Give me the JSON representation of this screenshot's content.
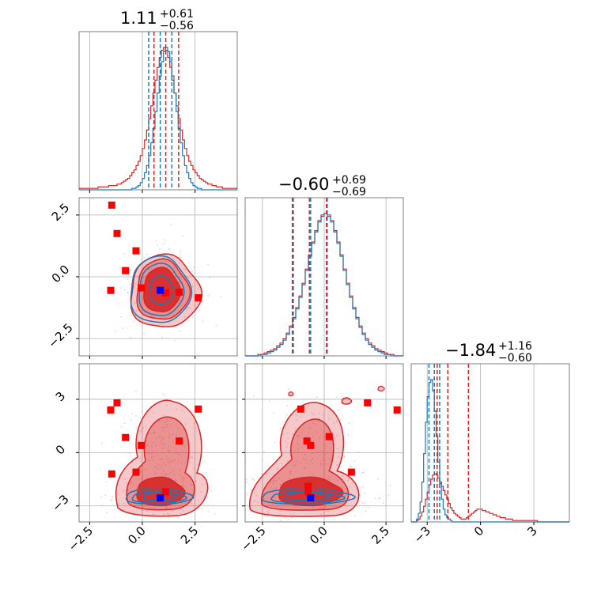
{
  "chart_data": {
    "type": "corner",
    "colors": {
      "blue": "#1f77b4",
      "red": "#d62728",
      "marker_red": "#ff0000",
      "marker_blue": "#0000ff"
    },
    "parameters": [
      {
        "title_value": "1.11",
        "title_plus": "+0.61",
        "title_minus": "−0.56",
        "range": [
          -3.0,
          4.5
        ]
      },
      {
        "title_value": "−0.60",
        "title_plus": "+0.69",
        "title_minus": "−0.69",
        "range": [
          -3.2,
          3.2
        ]
      },
      {
        "title_value": "−1.84",
        "title_plus": "+1.16",
        "title_minus": "−0.60",
        "range": [
          -3.9,
          5.0
        ]
      }
    ],
    "tick_labels": {
      "p1": [
        "−2.5",
        "0.0",
        "2.5"
      ],
      "p2": [
        "−2.5",
        "0.0",
        "2.5"
      ],
      "p3": [
        "−3",
        "0",
        "3"
      ]
    },
    "tick_values": {
      "p1": [
        -2.5,
        0.0,
        2.5
      ],
      "p2": [
        -2.5,
        0.0,
        2.5
      ],
      "p3": [
        -3,
        0,
        3
      ]
    },
    "quantile_lines": {
      "p1": {
        "blue": [
          0.3,
          0.85,
          1.4
        ],
        "red": [
          0.55,
          1.11,
          1.72
        ]
      },
      "p2": {
        "blue": [
          -1.25,
          -0.55,
          0.12
        ],
        "red": [
          -1.29,
          -0.6,
          0.09
        ]
      },
      "p3": {
        "blue": [
          -2.9,
          -2.6,
          -2.3
        ],
        "red": [
          -2.44,
          -1.84,
          -0.68
        ]
      }
    },
    "histograms": {
      "p1": {
        "bin_start": -3.0,
        "bin_width": 0.1,
        "blue": [
          0,
          0,
          0,
          0,
          0,
          0,
          0,
          0,
          0,
          0,
          0,
          0,
          0,
          0,
          0,
          0,
          0,
          0,
          0,
          0,
          0,
          0,
          0,
          0,
          0,
          1,
          1,
          2,
          3,
          5,
          8,
          12,
          17,
          24,
          33,
          43,
          55,
          68,
          80,
          90,
          97,
          100,
          97,
          90,
          80,
          68,
          55,
          43,
          33,
          24,
          17,
          12,
          8,
          5,
          3,
          2,
          1,
          1,
          0,
          0,
          0,
          0,
          0,
          0,
          0,
          0,
          0,
          0,
          0,
          0,
          0,
          0,
          0,
          0,
          0
        ],
        "red": [
          1,
          1,
          1,
          1,
          1,
          1,
          1,
          1,
          1,
          2,
          2,
          2,
          2,
          2,
          3,
          3,
          3,
          3,
          4,
          4,
          5,
          6,
          7,
          8,
          10,
          12,
          14,
          17,
          20,
          24,
          29,
          35,
          42,
          50,
          59,
          68,
          77,
          86,
          93,
          98,
          100,
          98,
          93,
          86,
          77,
          68,
          59,
          50,
          42,
          35,
          29,
          24,
          20,
          17,
          14,
          12,
          10,
          8,
          7,
          6,
          5,
          4,
          4,
          3,
          3,
          2,
          2,
          2,
          1,
          1,
          1,
          1,
          1,
          1,
          1
        ]
      },
      "p2": {
        "bin_start": -3.2,
        "bin_width": 0.128,
        "blue": [
          0,
          0,
          0,
          0,
          0,
          1,
          1,
          2,
          3,
          4,
          6,
          8,
          11,
          15,
          20,
          26,
          33,
          41,
          50,
          60,
          70,
          79,
          87,
          94,
          98,
          100,
          98,
          94,
          87,
          79,
          70,
          60,
          50,
          41,
          33,
          26,
          20,
          15,
          11,
          8,
          6,
          4,
          3,
          2,
          1,
          1,
          0,
          0,
          0,
          0
        ],
        "red": [
          0,
          0,
          0,
          0,
          1,
          1,
          2,
          3,
          4,
          5,
          7,
          9,
          12,
          16,
          21,
          27,
          34,
          42,
          51,
          61,
          71,
          80,
          88,
          95,
          99,
          100,
          99,
          95,
          88,
          80,
          71,
          61,
          51,
          42,
          34,
          27,
          21,
          16,
          12,
          9,
          7,
          5,
          4,
          3,
          2,
          1,
          1,
          0,
          0,
          0
        ]
      },
      "p3": {
        "bin_start": -3.9,
        "bin_width": 0.1,
        "blue": [
          0,
          0,
          0,
          2,
          6,
          14,
          28,
          48,
          70,
          88,
          98,
          100,
          92,
          78,
          60,
          42,
          27,
          16,
          9,
          5,
          3,
          2,
          1,
          0,
          0,
          0,
          0,
          0,
          0,
          0,
          0,
          0,
          0,
          0,
          0,
          0,
          0,
          0,
          0,
          0,
          0,
          0,
          0,
          0,
          0,
          0,
          0,
          0,
          0,
          0,
          0,
          0,
          0,
          0,
          0,
          0,
          0,
          0,
          0,
          0,
          0,
          0,
          0,
          0,
          0,
          0,
          0,
          0,
          0,
          0,
          0,
          0,
          0,
          0,
          0,
          0,
          0,
          0,
          0,
          0,
          0,
          0,
          0,
          0,
          0,
          0,
          0,
          0,
          0
        ],
        "red": [
          0,
          0,
          0,
          1,
          2,
          4,
          7,
          11,
          16,
          21,
          26,
          30,
          33,
          34,
          33,
          31,
          28,
          25,
          22,
          19,
          16,
          13,
          10,
          8,
          6,
          5,
          4,
          3,
          2,
          2,
          2,
          3,
          4,
          5,
          6,
          7,
          8,
          9,
          9,
          9,
          8,
          8,
          7,
          7,
          6,
          6,
          5,
          5,
          4,
          4,
          3,
          3,
          3,
          2,
          2,
          2,
          2,
          1,
          1,
          1,
          1,
          1,
          1,
          1,
          1,
          1,
          1,
          1,
          1,
          1,
          1,
          0,
          0,
          0,
          0,
          0,
          0,
          0,
          0,
          0,
          0,
          0,
          0,
          0,
          0,
          0,
          0,
          0,
          0
        ]
      }
    },
    "markers": {
      "red": [
        {
          "p1": -1.45,
          "p2": 2.9,
          "p3": -1.2
        },
        {
          "p1": -1.2,
          "p2": 1.75,
          "p3": 2.8
        },
        {
          "p1": -0.8,
          "p2": 0.25,
          "p3": 0.85
        },
        {
          "p1": -0.3,
          "p2": 1.05,
          "p3": -1.1
        },
        {
          "p1": -0.05,
          "p2": -0.45,
          "p3": 0.4
        },
        {
          "p1": 1.1,
          "p2": -0.65,
          "p3": -2.2
        },
        {
          "p1": 1.75,
          "p2": -0.62,
          "p3": 0.65
        },
        {
          "p1": 2.65,
          "p2": -0.85,
          "p3": 2.45
        },
        {
          "p1": -1.5,
          "p2": -0.55,
          "p3": 2.4
        }
      ],
      "red_p2p3": [
        {
          "p2": -0.95,
          "p3": 2.45
        },
        {
          "p2": -0.7,
          "p3": 0.65
        },
        {
          "p2": -0.55,
          "p3": 0.4
        },
        {
          "p2": 0.2,
          "p3": 0.9
        },
        {
          "p2": 1.1,
          "p3": -1.1
        },
        {
          "p2": 1.75,
          "p3": 2.8
        },
        {
          "p2": 2.95,
          "p3": 2.4
        },
        {
          "p2": -0.65,
          "p3": -1.9
        },
        {
          "p2": -0.65,
          "p3": -2.2
        }
      ],
      "blue": {
        "p1": 0.85,
        "p2": -0.55,
        "p3": -2.55
      }
    }
  }
}
